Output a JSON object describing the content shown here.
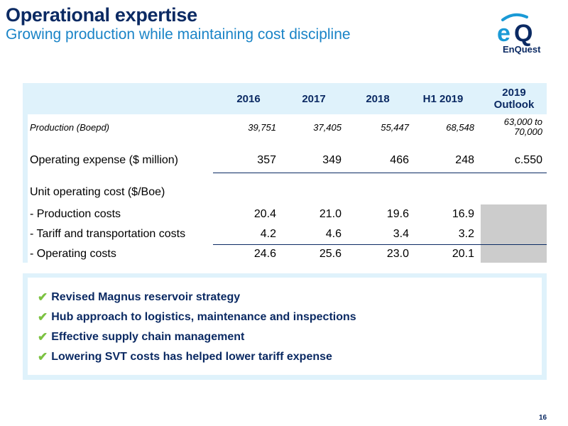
{
  "header": {
    "title": "Operational expertise",
    "subtitle": "Growing production while maintaining cost discipline"
  },
  "logo": {
    "text": "EnQuest",
    "colors": {
      "primary": "#0b2a63",
      "accent": "#1a9ad6"
    }
  },
  "table": {
    "columns": [
      "2016",
      "2017",
      "2018",
      "H1 2019",
      "2019 Outlook"
    ],
    "production": {
      "label": "Production (Boepd)",
      "values": [
        "39,751",
        "37,405",
        "55,447",
        "68,548"
      ],
      "outlook_line1": "63,000 to",
      "outlook_line2": "70,000"
    },
    "opex": {
      "label": "Operating expense ($ million)",
      "values": [
        "357",
        "349",
        "466",
        "248",
        "c.550"
      ]
    },
    "unit_cost": {
      "label": "Unit operating cost ($/Boe)",
      "rows": [
        {
          "label": "- Production costs",
          "values": [
            "20.4",
            "21.0",
            "19.6",
            "16.9"
          ]
        },
        {
          "label": "- Tariff and transportation costs",
          "values": [
            "4.2",
            "4.6",
            "3.4",
            "3.2"
          ]
        },
        {
          "label": "- Operating costs",
          "values": [
            "24.6",
            "25.6",
            "23.0",
            "20.1"
          ]
        }
      ]
    }
  },
  "bullets": [
    "Revised Magnus reservoir strategy",
    "Hub approach to logistics, maintenance and inspections",
    "Effective supply chain management",
    "Lowering SVT costs has helped lower tariff expense"
  ],
  "check_icon": "✔",
  "page_number": "16",
  "colors": {
    "navy": "#0b2a63",
    "blue": "#1a84c7",
    "panel": "#dff2fb",
    "check": "#7cc242",
    "grey_cell": "#cccccc"
  }
}
